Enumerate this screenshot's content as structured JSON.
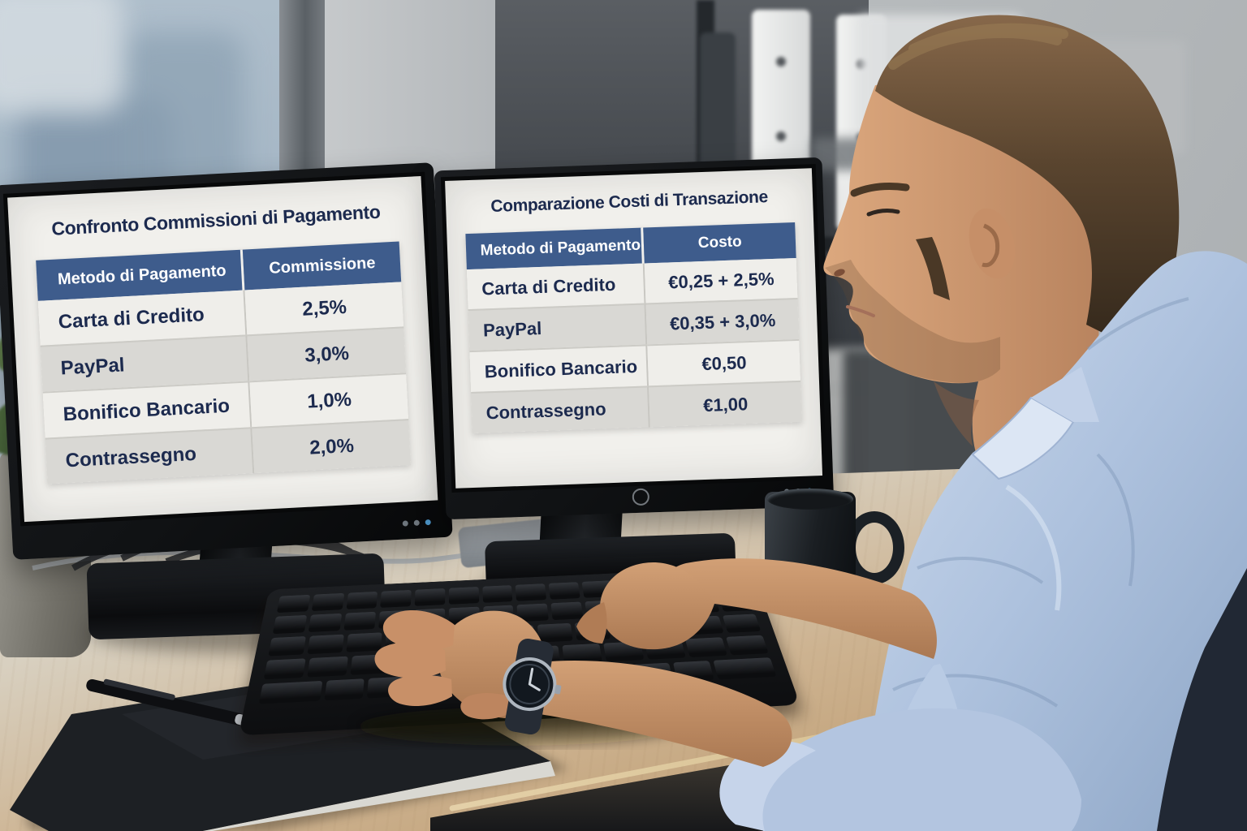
{
  "left_screen": {
    "title": "Confronto Commissioni di Pagamento",
    "columns": [
      "Metodo di Pagamento",
      "Commissione"
    ],
    "rows": [
      [
        "Carta di Credito",
        "2,5%"
      ],
      [
        "PayPal",
        "3,0%"
      ],
      [
        "Bonifico Bancario",
        "1,0%"
      ],
      [
        "Contrassegno",
        "2,0%"
      ]
    ]
  },
  "right_screen": {
    "title": "Comparazione Costi di Transazione",
    "columns": [
      "Metodo di Pagamento",
      "Costo"
    ],
    "rows": [
      [
        "Carta di Credito",
        "€0,25 + 2,5%"
      ],
      [
        "PayPal",
        "€0,35 + 3,0%"
      ],
      [
        "Bonifico Bancario",
        "€0,50"
      ],
      [
        "Contrassegno",
        "€1,00"
      ]
    ]
  },
  "colors": {
    "table_header_bg": "#3e5c8c",
    "table_title_text": "#1c2a4e",
    "table_row_light": "#efeeea",
    "table_row_dark": "#d9d8d4",
    "screen_bg": "#f1f0ec",
    "shirt_blue": "#aec2de",
    "desk_wood": "#cdb391"
  }
}
